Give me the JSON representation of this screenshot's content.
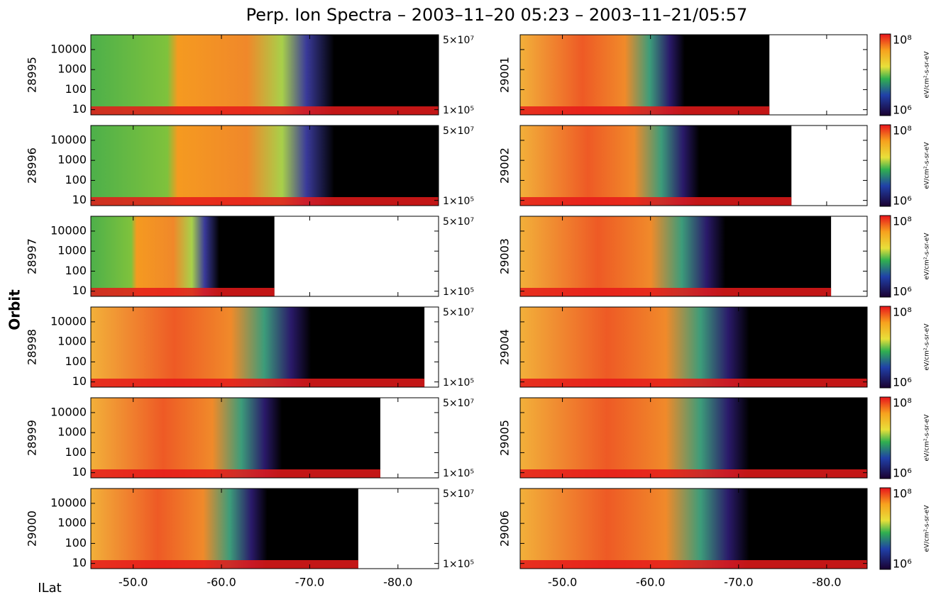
{
  "title": "Perp. Ion Spectra – 2003–11–20  05:23 – 2003–11–21/05:57",
  "y_label": "Orbit",
  "x_label": "ILat",
  "x_axis": {
    "xlim": [
      -45.2,
      -84.6
    ],
    "xticks": [
      {
        "value": -50,
        "label": "-50.0"
      },
      {
        "value": -60,
        "label": "-60.0"
      },
      {
        "value": -70,
        "label": "-70.0"
      },
      {
        "value": -80,
        "label": "-80.0"
      }
    ]
  },
  "y_axis": {
    "log": true,
    "ylim": [
      5.5,
      55000
    ],
    "yticks": [
      10,
      100,
      1000,
      10000
    ]
  },
  "left_panels": {
    "orbits": [
      "28995",
      "28996",
      "28997",
      "28998",
      "28999",
      "29000"
    ],
    "end_ilat": [
      -84.6,
      -84.6,
      -66,
      -83,
      -78,
      -75.5
    ],
    "scale_labels": [
      "5×10⁷",
      "1×10⁵"
    ]
  },
  "right_panels": {
    "orbits": [
      "29001",
      "29002",
      "29003",
      "29004",
      "29005",
      "29006"
    ],
    "end_ilat": [
      -73.5,
      -76,
      -80.5,
      -84.6,
      -84.6,
      -84.6
    ],
    "colorbar": {
      "top": "10⁸",
      "bottom": "10⁶",
      "unit": "eV/cm²-s-sr-eV"
    }
  }
}
